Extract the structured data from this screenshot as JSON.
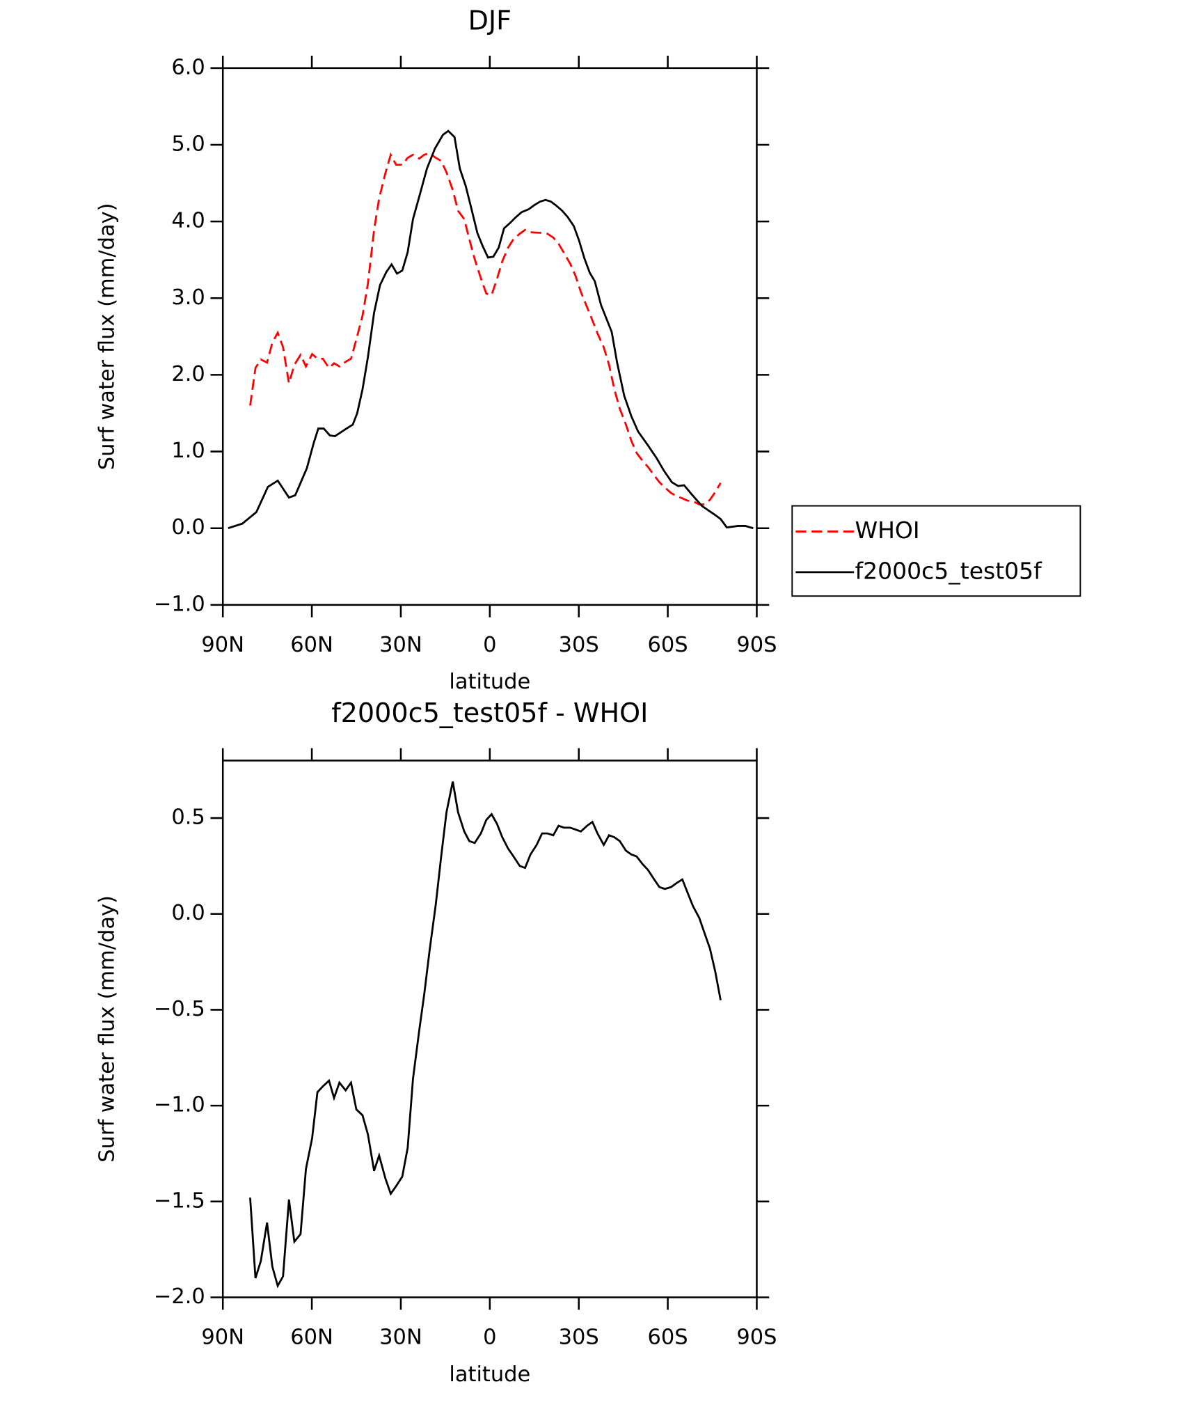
{
  "chart_data": [
    {
      "type": "line",
      "title": "DJF",
      "xlabel": "latitude",
      "ylabel": "Surf water flux (mm/day)",
      "xlim": [
        90,
        -90
      ],
      "xticks": [
        {
          "value": 90,
          "label": "90N"
        },
        {
          "value": 60,
          "label": "60N"
        },
        {
          "value": 30,
          "label": "30N"
        },
        0,
        {
          "value": -30,
          "label": "30S"
        },
        {
          "value": -60,
          "label": "60S"
        },
        {
          "value": -90,
          "label": "90S"
        }
      ],
      "ylim": [
        -1.0,
        6.0
      ],
      "yticks": [
        {
          "value": -1.0,
          "label": "−1.0"
        },
        {
          "value": 0,
          "label": "0.0"
        },
        {
          "value": 1.0,
          "label": "1.0"
        },
        {
          "value": 2.0,
          "label": "2.0"
        },
        {
          "value": 3.0,
          "label": "3.0"
        },
        {
          "value": 4.0,
          "label": "4.0"
        },
        {
          "value": 5.0,
          "label": "5.0"
        },
        {
          "value": 6.0,
          "label": "6.0"
        }
      ],
      "grid": false,
      "legend": "right",
      "series": [
        {
          "name": "WHOI",
          "color": "#ff0000",
          "dash": "dashed",
          "x": [
            80.8,
            79.0,
            77.2,
            75.1,
            73.3,
            71.5,
            69.7,
            67.7,
            65.9,
            63.8,
            62.0,
            59.9,
            58.1,
            56.3,
            54.2,
            52.5,
            50.7,
            48.6,
            46.8,
            45.0,
            42.9,
            41.1,
            39.0,
            37.3,
            35.2,
            33.4,
            31.6,
            29.5,
            27.7,
            25.9,
            23.8,
            22.1,
            20.3,
            18.2,
            16.4,
            14.6,
            12.5,
            10.7,
            8.6,
            6.9,
            5.1,
            3.0,
            1.2,
            -0.6,
            -2.4,
            -4.2,
            -6.2,
            -8.0,
            -10.1,
            -11.9,
            -13.7,
            -17.6,
            -19.4,
            -21.4,
            -23.2,
            -25.0,
            -27.1,
            -28.9,
            -30.7,
            -32.8,
            -34.6,
            -36.3,
            -38.4,
            -40.2,
            -42.0,
            -43.8,
            -45.9,
            -47.7,
            -49.5,
            -51.5,
            -53.3,
            -55.4,
            -57.2,
            -59.0,
            -61.1,
            -62.9,
            -64.9,
            -66.7,
            -68.5,
            -70.6,
            -72.4,
            -74.2,
            -76.0,
            -77.8
          ],
          "values": [
            1.6,
            2.09,
            2.2,
            2.16,
            2.42,
            2.55,
            2.36,
            1.89,
            2.13,
            2.26,
            2.11,
            2.27,
            2.21,
            2.21,
            2.09,
            2.15,
            2.11,
            2.17,
            2.21,
            2.46,
            2.77,
            3.19,
            3.89,
            4.3,
            4.63,
            4.87,
            4.74,
            4.74,
            4.83,
            4.87,
            4.82,
            4.87,
            4.89,
            4.83,
            4.79,
            4.64,
            4.41,
            4.14,
            4.03,
            3.77,
            3.51,
            3.26,
            3.06,
            3.04,
            3.25,
            3.48,
            3.66,
            3.77,
            3.84,
            3.89,
            3.86,
            3.85,
            3.84,
            3.79,
            3.71,
            3.59,
            3.45,
            3.29,
            3.08,
            2.88,
            2.71,
            2.54,
            2.36,
            2.13,
            1.81,
            1.56,
            1.35,
            1.14,
            0.98,
            0.88,
            0.8,
            0.69,
            0.6,
            0.53,
            0.46,
            0.42,
            0.39,
            0.36,
            0.35,
            0.31,
            0.31,
            0.37,
            0.47,
            0.59
          ]
        },
        {
          "name": "f2000c5_test05f",
          "color": "#000000",
          "dash": "solid",
          "x": [
            88.2,
            83.4,
            78.7,
            74.8,
            71.5,
            67.7,
            65.6,
            61.7,
            59.3,
            57.8,
            56.0,
            53.9,
            52.2,
            48.3,
            46.2,
            44.7,
            42.9,
            41.1,
            39.0,
            37.0,
            34.9,
            33.1,
            31.3,
            29.5,
            27.7,
            25.9,
            23.6,
            21.2,
            18.5,
            15.8,
            14.0,
            11.9,
            10.1,
            8.1,
            6.3,
            4.2,
            2.4,
            0.6,
            -1.2,
            -3.0,
            -4.8,
            -6.8,
            -8.6,
            -10.7,
            -13.1,
            -14.9,
            -17.0,
            -18.8,
            -20.6,
            -22.3,
            -24.4,
            -26.2,
            -28.3,
            -30.1,
            -31.9,
            -33.7,
            -35.4,
            -37.5,
            -41.1,
            -42.9,
            -45.3,
            -47.7,
            -50.0,
            -53.3,
            -56.3,
            -58.7,
            -61.4,
            -63.5,
            -65.5,
            -67.9,
            -71.5,
            -75.7,
            -77.8,
            -79.9,
            -83.7,
            -86.1,
            -88.8
          ],
          "values": [
            0.0,
            0.06,
            0.21,
            0.54,
            0.62,
            0.4,
            0.43,
            0.78,
            1.12,
            1.3,
            1.3,
            1.21,
            1.2,
            1.3,
            1.35,
            1.5,
            1.81,
            2.23,
            2.81,
            3.17,
            3.34,
            3.44,
            3.32,
            3.36,
            3.6,
            4.03,
            4.35,
            4.69,
            4.95,
            5.13,
            5.18,
            5.1,
            4.69,
            4.46,
            4.18,
            3.85,
            3.68,
            3.53,
            3.54,
            3.66,
            3.91,
            3.98,
            4.05,
            4.12,
            4.16,
            4.21,
            4.26,
            4.28,
            4.26,
            4.21,
            4.14,
            4.06,
            3.94,
            3.75,
            3.52,
            3.33,
            3.22,
            2.91,
            2.56,
            2.16,
            1.73,
            1.46,
            1.26,
            1.08,
            0.91,
            0.75,
            0.6,
            0.55,
            0.56,
            0.45,
            0.29,
            0.18,
            0.12,
            0.01,
            0.03,
            0.03,
            0.0
          ]
        }
      ]
    },
    {
      "type": "line",
      "title": "f2000c5_test05f - WHOI",
      "xlabel": "latitude",
      "ylabel": "Surf water flux (mm/day)",
      "xlim": [
        90,
        -90
      ],
      "xticks": [
        {
          "value": 90,
          "label": "90N"
        },
        {
          "value": 60,
          "label": "60N"
        },
        {
          "value": 30,
          "label": "30N"
        },
        0,
        {
          "value": -30,
          "label": "30S"
        },
        {
          "value": -60,
          "label": "60S"
        },
        {
          "value": -90,
          "label": "90S"
        }
      ],
      "ylim": [
        -2.0,
        0.8
      ],
      "yticks": [
        {
          "value": -2.0,
          "label": "−2.0"
        },
        {
          "value": -1.5,
          "label": "−1.5"
        },
        {
          "value": -1.0,
          "label": "−1.0"
        },
        {
          "value": -0.5,
          "label": "−0.5"
        },
        {
          "value": 0,
          "label": "0.0"
        },
        0.5
      ],
      "grid": false,
      "series": [
        {
          "color": "#000000",
          "dash": "solid",
          "x": [
            80.8,
            79.0,
            77.2,
            75.1,
            73.3,
            71.5,
            69.7,
            67.7,
            65.9,
            63.8,
            62.0,
            59.9,
            58.1,
            56.3,
            54.2,
            52.5,
            50.7,
            48.6,
            46.8,
            45.0,
            42.9,
            41.1,
            39.0,
            37.3,
            35.2,
            33.4,
            31.6,
            29.5,
            27.7,
            25.9,
            23.8,
            22.1,
            20.3,
            18.2,
            16.4,
            14.6,
            12.5,
            10.7,
            8.6,
            6.9,
            5.1,
            3.0,
            1.2,
            -0.6,
            -2.4,
            -4.2,
            -6.2,
            -8.0,
            -10.1,
            -11.9,
            -13.7,
            -15.8,
            -17.6,
            -19.4,
            -21.4,
            -23.2,
            -25.0,
            -27.1,
            -28.9,
            -30.7,
            -32.8,
            -34.6,
            -36.3,
            -38.4,
            -40.2,
            -42.0,
            -43.8,
            -45.9,
            -47.7,
            -49.5,
            -51.5,
            -53.3,
            -55.4,
            -57.2,
            -59.0,
            -61.1,
            -62.9,
            -64.9,
            -66.7,
            -68.5,
            -70.6,
            -72.4,
            -74.2,
            -76.0,
            -77.8
          ],
          "values": [
            -1.48,
            -1.9,
            -1.81,
            -1.61,
            -1.84,
            -1.94,
            -1.89,
            -1.49,
            -1.71,
            -1.67,
            -1.33,
            -1.17,
            -0.93,
            -0.9,
            -0.87,
            -0.96,
            -0.88,
            -0.92,
            -0.88,
            -1.02,
            -1.05,
            -1.15,
            -1.34,
            -1.26,
            -1.38,
            -1.46,
            -1.42,
            -1.37,
            -1.22,
            -0.86,
            -0.61,
            -0.42,
            -0.19,
            0.05,
            0.3,
            0.53,
            0.69,
            0.53,
            0.43,
            0.38,
            0.37,
            0.42,
            0.49,
            0.52,
            0.47,
            0.4,
            0.34,
            0.3,
            0.25,
            0.24,
            0.31,
            0.36,
            0.42,
            0.42,
            0.41,
            0.46,
            0.45,
            0.45,
            0.44,
            0.43,
            0.46,
            0.48,
            0.42,
            0.36,
            0.41,
            0.4,
            0.38,
            0.33,
            0.31,
            0.3,
            0.26,
            0.23,
            0.18,
            0.14,
            0.13,
            0.14,
            0.16,
            0.18,
            0.11,
            0.04,
            -0.02,
            -0.1,
            -0.18,
            -0.3,
            -0.45
          ]
        }
      ]
    }
  ]
}
